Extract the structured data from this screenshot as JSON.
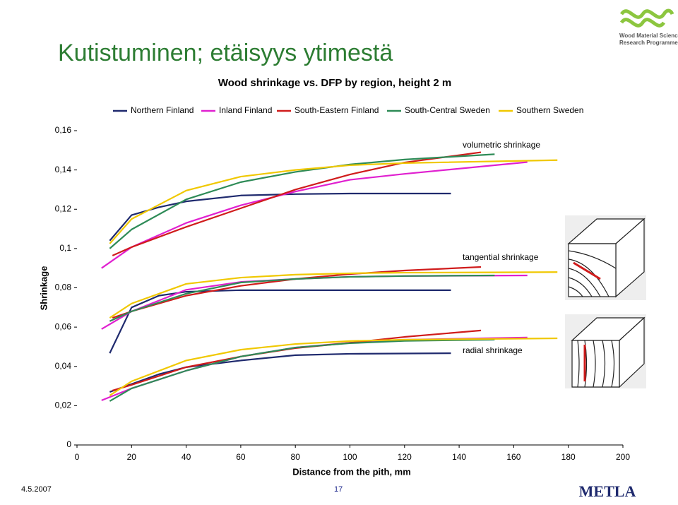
{
  "slide": {
    "title": "Kutistuminen; etäisyys ytimestä",
    "date": "4.5.2007",
    "page": "17",
    "logo": "METLA",
    "programme": [
      "Wood Material Science",
      "Research Programme"
    ]
  },
  "chart_data": {
    "type": "line",
    "title": "Wood shrinkage vs. DFP by region, height 2 m",
    "x_label": "Distance from the pith, mm",
    "y_label": "Shrinkage",
    "xlim": [
      0,
      200
    ],
    "xticks": [
      0,
      20,
      40,
      60,
      80,
      100,
      120,
      140,
      160,
      180,
      200
    ],
    "ylim": [
      0,
      0.16
    ],
    "yticks": [
      0,
      {
        "value": 0.02,
        "label": "0,02"
      },
      {
        "value": 0.04,
        "label": "0,04"
      },
      {
        "value": 0.06,
        "label": "0,06"
      },
      {
        "value": 0.08,
        "label": "0,08"
      },
      {
        "value": 0.1,
        "label": "0,1"
      },
      {
        "value": 0.12,
        "label": "0,12"
      },
      {
        "value": 0.14,
        "label": "0,14"
      },
      {
        "value": 0.16,
        "label": "0,16"
      }
    ],
    "annotations": [
      "volumetric shrinkage",
      "tangential shrinkage",
      "radial shrinkage"
    ],
    "series": [
      {
        "name": "Northern Finland",
        "color": "#1f2a6e",
        "x": [
          12,
          20,
          30,
          40,
          60,
          80,
          100,
          137
        ],
        "curves": [
          [
            0.104,
            0.117,
            0.121,
            0.124,
            0.127,
            0.1277,
            0.128,
            0.128
          ],
          [
            0.0467,
            0.07,
            0.076,
            0.078,
            0.0788,
            0.0788,
            0.0788,
            0.0788
          ],
          [
            0.027,
            0.031,
            0.036,
            0.0396,
            0.043,
            0.0457,
            0.0464,
            0.0467
          ]
        ]
      },
      {
        "name": "Inland Finland",
        "color": "#e020d0",
        "x": [
          9,
          20,
          40,
          60,
          80,
          100,
          120,
          165
        ],
        "curves": [
          [
            0.09,
            0.1007,
            0.113,
            0.122,
            0.129,
            0.135,
            0.138,
            0.144
          ],
          [
            0.059,
            0.068,
            0.079,
            0.083,
            0.0845,
            0.0856,
            0.086,
            0.0863
          ],
          [
            0.0227,
            0.0288,
            0.0378,
            0.045,
            0.0496,
            0.052,
            0.0536,
            0.0547
          ]
        ]
      },
      {
        "name": "South-Eastern Finland",
        "color": "#d01c1c",
        "x": [
          13,
          20,
          40,
          60,
          80,
          100,
          120,
          148
        ],
        "curves": [
          [
            0.0964,
            0.1007,
            0.111,
            0.1205,
            0.13,
            0.1377,
            0.1438,
            0.149
          ],
          [
            0.0647,
            0.068,
            0.076,
            0.081,
            0.0845,
            0.087,
            0.0888,
            0.0906
          ],
          [
            0.0277,
            0.0306,
            0.0396,
            0.045,
            0.0493,
            0.052,
            0.055,
            0.0583
          ]
        ]
      },
      {
        "name": "South-Central Sweden",
        "color": "#2e8b57",
        "x": [
          12,
          20,
          40,
          60,
          80,
          100,
          120,
          153
        ],
        "curves": [
          [
            0.1,
            0.1097,
            0.125,
            0.1338,
            0.139,
            0.1428,
            0.1453,
            0.148
          ],
          [
            0.063,
            0.068,
            0.077,
            0.0827,
            0.0845,
            0.0856,
            0.086,
            0.0863
          ],
          [
            0.0223,
            0.0288,
            0.0378,
            0.045,
            0.0496,
            0.0518,
            0.053,
            0.0536
          ]
        ]
      },
      {
        "name": "Southern Sweden",
        "color": "#f0c800",
        "x": [
          12,
          20,
          40,
          60,
          80,
          100,
          120,
          176
        ],
        "curves": [
          [
            0.1025,
            0.115,
            0.1295,
            0.1366,
            0.14,
            0.1424,
            0.1435,
            0.145
          ],
          [
            0.0647,
            0.072,
            0.082,
            0.0852,
            0.0867,
            0.0874,
            0.0877,
            0.088
          ],
          [
            0.0252,
            0.0324,
            0.043,
            0.0485,
            0.0514,
            0.0529,
            0.0536,
            0.0543
          ]
        ]
      }
    ]
  }
}
